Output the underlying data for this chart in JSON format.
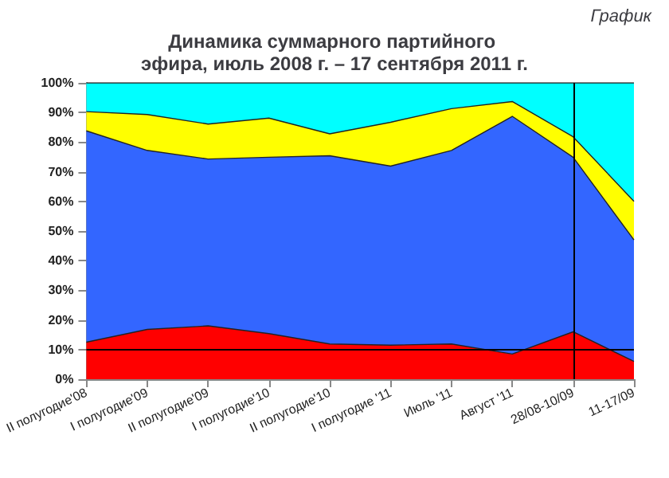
{
  "chart_data": {
    "type": "area",
    "title": "Динамика суммарного партийного эфира, июль 2008 г. – 17 сентября 2011 г.",
    "annotations": [
      "График"
    ],
    "categories": [
      "II полугодие'08",
      "I полугодие'09",
      "II полугодие'09",
      "I полугодие'10",
      "II полугодие'10",
      "I полугодие '11",
      "Июль '11",
      "Август '11",
      "28/08-10/09",
      "11-17/09"
    ],
    "stacked": true,
    "series": [
      {
        "color": "#ff0000",
        "values": [
          12.5,
          16.8,
          18,
          15.4,
          11.9,
          11.5,
          11.9,
          8.5,
          16,
          6
        ]
      },
      {
        "color": "#3366ff",
        "values": [
          71.3,
          60.4,
          56.3,
          59.5,
          63.5,
          60.4,
          65.3,
          80.2,
          58.9,
          41
        ]
      },
      {
        "color": "#ffff00",
        "values": [
          6.5,
          12.1,
          11.8,
          13.2,
          7.4,
          14.8,
          14.1,
          5,
          6.9,
          13
        ]
      },
      {
        "color": "#00ffff",
        "values": [
          9.7,
          10.7,
          13.9,
          11.9,
          17.2,
          13.3,
          8.7,
          6.3,
          18.2,
          40
        ]
      }
    ],
    "ylim": [
      0,
      100
    ],
    "yticks": [
      {
        "value": 0,
        "label": "0%"
      },
      {
        "value": 10,
        "label": "10%"
      },
      {
        "value": 20,
        "label": "20%"
      },
      {
        "value": 30,
        "label": "30%"
      },
      {
        "value": 40,
        "label": "40%"
      },
      {
        "value": 50,
        "label": "50%"
      },
      {
        "value": 60,
        "label": "60%"
      },
      {
        "value": 70,
        "label": "70%"
      },
      {
        "value": 80,
        "label": "80%"
      },
      {
        "value": 90,
        "label": "90%"
      },
      {
        "value": 100,
        "label": "100%"
      }
    ],
    "ref_lines": [
      {
        "axis": "x",
        "value": "28/08-10/09",
        "color": "#000000"
      },
      {
        "axis": "y",
        "value": 10,
        "color": "#000000"
      }
    ],
    "grid": false,
    "marker": "none",
    "line_style": "solid"
  }
}
